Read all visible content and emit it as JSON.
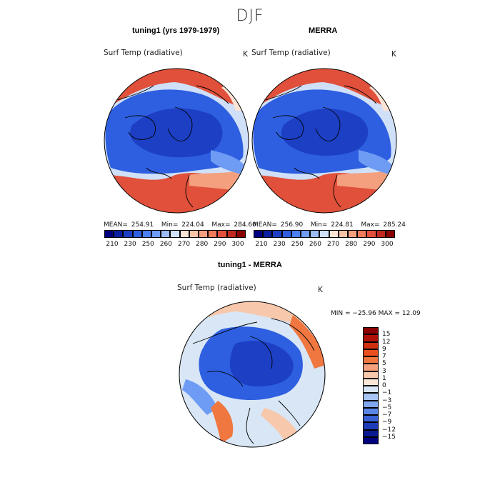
{
  "title": "DJF",
  "panels": {
    "left": {
      "title": "tuning1 (yrs 1979-1979)",
      "variable": "Surf Temp (radiative)",
      "unit": "K",
      "mean_label": "MEAN=",
      "mean": "254.91",
      "min_label": "Min=",
      "min": "224.04",
      "max_label": "Max=",
      "max": "284.60"
    },
    "right": {
      "title": "MERRA",
      "variable": "Surf Temp (radiative)",
      "unit": "K",
      "mean_label": "MEAN=",
      "mean": "256.90",
      "min_label": "Min=",
      "min": "224.81",
      "max_label": "Max=",
      "max": "285.24"
    },
    "diff": {
      "title": "tuning1 - MERRA",
      "variable": "Surf Temp (radiative)",
      "unit": "K",
      "minmax_text": "MIN = −25.96 MAX =   12.09"
    }
  },
  "abs_colorbar": {
    "ticks": [
      "210",
      "230",
      "250",
      "260",
      "270",
      "280",
      "290",
      "300"
    ],
    "colors": [
      "#00007f",
      "#0a1fa0",
      "#1c3fc4",
      "#2e5fe0",
      "#4a7ff0",
      "#6e9cf5",
      "#9cbcf7",
      "#cfe0f8",
      "#fbe3d5",
      "#f8c4a8",
      "#f4a07f",
      "#ee7b5a",
      "#e0503a",
      "#c02a1e",
      "#8b0000"
    ]
  },
  "diff_colorbar": {
    "labels": [
      "15",
      "12",
      "9",
      "7",
      "5",
      "3",
      "1",
      "0",
      "−1",
      "−3",
      "−5",
      "−7",
      "−9",
      "−12",
      "−15"
    ],
    "colors": [
      "#8b0000",
      "#b01008",
      "#d0300e",
      "#e8501e",
      "#f07840",
      "#f4a07c",
      "#f8c8ac",
      "#fbe6d8",
      "#d8e6f6",
      "#a8c4f2",
      "#80a6ee",
      "#5a86e8",
      "#3a62d8",
      "#1e3cb8",
      "#0a1a90",
      "#00007f"
    ]
  },
  "map_colors": {
    "cold_deep": "#1c3fc4",
    "cold": "#2e5fe0",
    "cool": "#6e9cf5",
    "neutral": "#cfe0f8",
    "warm_light": "#fbe3d5",
    "warm": "#f4a07f",
    "hot": "#e0503a",
    "diff_neutral": "#d8e6f6",
    "diff_pos": "#f8c8ac",
    "diff_pos_strong": "#f07840"
  }
}
